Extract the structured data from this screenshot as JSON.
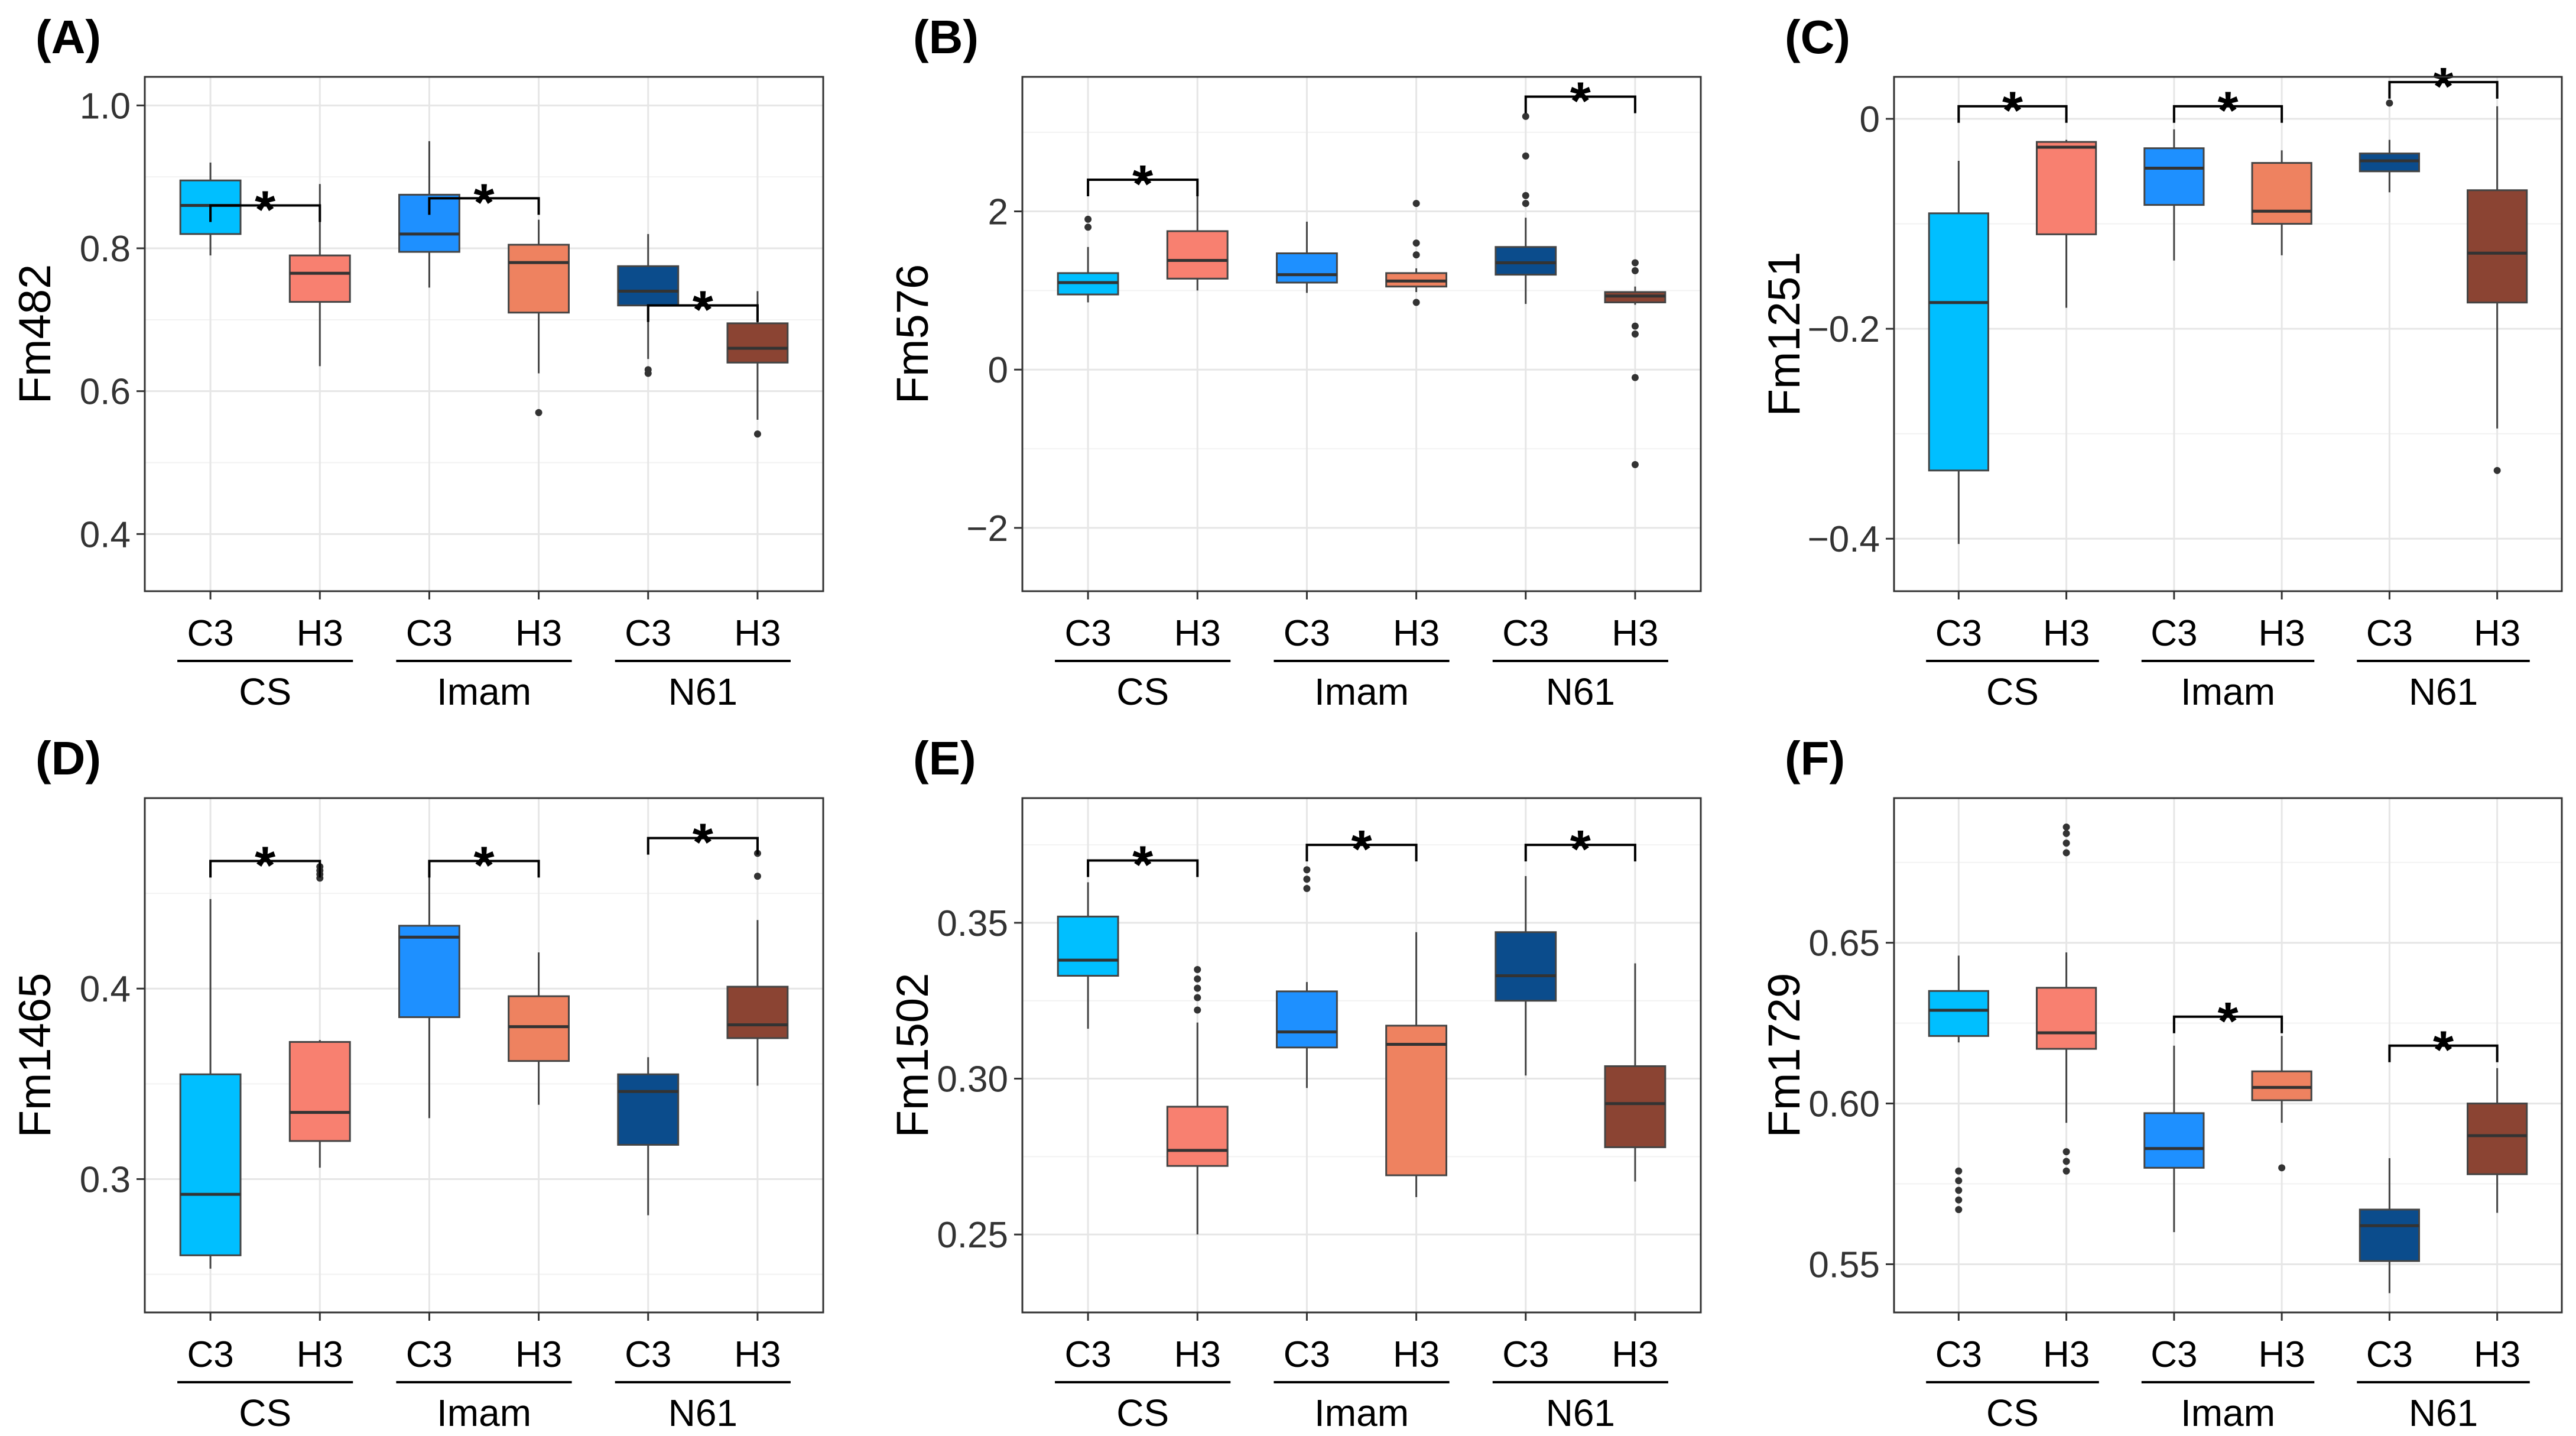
{
  "chart_data": [
    {
      "type": "box",
      "panel": "(A)",
      "ylabel": "Fm482",
      "ylim": [
        0.32,
        1.04
      ],
      "yticks": [
        0.4,
        0.6,
        0.8,
        1.0
      ],
      "ytick_labels": [
        "0.4",
        "0.6",
        "0.8",
        "1.0"
      ],
      "groups": [
        "CS",
        "Imam",
        "N61"
      ],
      "categories": [
        "C3",
        "H3"
      ],
      "boxes": [
        {
          "group": "CS",
          "cat": "C3",
          "color": "#00BFFF",
          "min": 0.79,
          "q1": 0.82,
          "median": 0.86,
          "q3": 0.895,
          "max": 0.92,
          "outliers": []
        },
        {
          "group": "CS",
          "cat": "H3",
          "color": "#F88070",
          "min": 0.635,
          "q1": 0.725,
          "median": 0.765,
          "q3": 0.79,
          "max": 0.89,
          "outliers": []
        },
        {
          "group": "Imam",
          "cat": "C3",
          "color": "#1E90FF",
          "min": 0.745,
          "q1": 0.795,
          "median": 0.82,
          "q3": 0.875,
          "max": 0.95,
          "outliers": []
        },
        {
          "group": "Imam",
          "cat": "H3",
          "color": "#EE8260",
          "min": 0.625,
          "q1": 0.71,
          "median": 0.78,
          "q3": 0.805,
          "max": 0.84,
          "outliers": [
            0.57
          ]
        },
        {
          "group": "N61",
          "cat": "C3",
          "color": "#0B4C8C",
          "min": 0.645,
          "q1": 0.72,
          "median": 0.74,
          "q3": 0.775,
          "max": 0.82,
          "outliers": [
            0.63,
            0.625
          ]
        },
        {
          "group": "N61",
          "cat": "H3",
          "color": "#8B4433",
          "min": 0.56,
          "q1": 0.64,
          "median": 0.66,
          "q3": 0.695,
          "max": 0.74,
          "outliers": [
            0.54
          ]
        }
      ],
      "significance": [
        {
          "group": "CS",
          "label": "*",
          "y": 0.86
        },
        {
          "group": "Imam",
          "label": "*",
          "y": 0.87
        },
        {
          "group": "N61",
          "label": "*",
          "y": 0.72
        }
      ]
    },
    {
      "type": "box",
      "panel": "(B)",
      "ylabel": "Fm576",
      "ylim": [
        -2.8,
        3.7
      ],
      "yticks": [
        -2,
        0,
        2
      ],
      "ytick_labels": [
        "−2",
        "0",
        "2"
      ],
      "groups": [
        "CS",
        "Imam",
        "N61"
      ],
      "categories": [
        "C3",
        "H3"
      ],
      "boxes": [
        {
          "group": "CS",
          "cat": "C3",
          "color": "#00BFFF",
          "min": 0.85,
          "q1": 0.95,
          "median": 1.1,
          "q3": 1.22,
          "max": 1.55,
          "outliers": [
            1.8,
            1.9
          ]
        },
        {
          "group": "CS",
          "cat": "H3",
          "color": "#F88070",
          "min": 1.0,
          "q1": 1.15,
          "median": 1.38,
          "q3": 1.75,
          "max": 2.2,
          "outliers": []
        },
        {
          "group": "Imam",
          "cat": "C3",
          "color": "#1E90FF",
          "min": 0.97,
          "q1": 1.1,
          "median": 1.2,
          "q3": 1.47,
          "max": 1.87,
          "outliers": []
        },
        {
          "group": "Imam",
          "cat": "H3",
          "color": "#EE8260",
          "min": 0.98,
          "q1": 1.05,
          "median": 1.12,
          "q3": 1.22,
          "max": 1.28,
          "outliers": [
            0.85,
            1.45,
            1.6,
            2.1
          ]
        },
        {
          "group": "N61",
          "cat": "C3",
          "color": "#0B4C8C",
          "min": 0.83,
          "q1": 1.2,
          "median": 1.35,
          "q3": 1.55,
          "max": 1.92,
          "outliers": [
            2.1,
            2.2,
            2.7,
            3.2
          ]
        },
        {
          "group": "N61",
          "cat": "H3",
          "color": "#8B4433",
          "min": 0.82,
          "q1": 0.85,
          "median": 0.93,
          "q3": 0.98,
          "max": 1.05,
          "outliers": [
            0.55,
            0.45,
            -0.1,
            -1.2,
            1.25,
            1.35
          ]
        }
      ],
      "significance": [
        {
          "group": "CS",
          "label": "*",
          "y": 2.4
        },
        {
          "group": "N61",
          "label": "*",
          "y": 3.45
        }
      ]
    },
    {
      "type": "box",
      "panel": "(C)",
      "ylabel": "Fm1251",
      "ylim": [
        -0.45,
        0.04
      ],
      "yticks": [
        -0.4,
        -0.2,
        0
      ],
      "ytick_labels": [
        "−0.4",
        "−0.2",
        "0"
      ],
      "groups": [
        "CS",
        "Imam",
        "N61"
      ],
      "categories": [
        "C3",
        "H3"
      ],
      "boxes": [
        {
          "group": "CS",
          "cat": "C3",
          "color": "#00BFFF",
          "min": -0.405,
          "q1": -0.335,
          "median": -0.175,
          "q3": -0.09,
          "max": -0.04,
          "outliers": []
        },
        {
          "group": "CS",
          "cat": "H3",
          "color": "#F88070",
          "min": -0.18,
          "q1": -0.11,
          "median": -0.027,
          "q3": -0.022,
          "max": -0.02,
          "outliers": []
        },
        {
          "group": "Imam",
          "cat": "C3",
          "color": "#1E90FF",
          "min": -0.135,
          "q1": -0.082,
          "median": -0.047,
          "q3": -0.028,
          "max": -0.01,
          "outliers": []
        },
        {
          "group": "Imam",
          "cat": "H3",
          "color": "#EE8260",
          "min": -0.13,
          "q1": -0.1,
          "median": -0.088,
          "q3": -0.042,
          "max": -0.03,
          "outliers": []
        },
        {
          "group": "N61",
          "cat": "C3",
          "color": "#0B4C8C",
          "min": -0.07,
          "q1": -0.05,
          "median": -0.04,
          "q3": -0.033,
          "max": -0.02,
          "outliers": [
            0.015
          ]
        },
        {
          "group": "N61",
          "cat": "H3",
          "color": "#8B4433",
          "min": -0.295,
          "q1": -0.175,
          "median": -0.128,
          "q3": -0.068,
          "max": 0.012,
          "outliers": [
            -0.335
          ]
        }
      ],
      "significance": [
        {
          "group": "CS",
          "label": "*",
          "y": 0.012
        },
        {
          "group": "Imam",
          "label": "*",
          "y": 0.012
        },
        {
          "group": "N61",
          "label": "*",
          "y": 0.035
        }
      ]
    },
    {
      "type": "box",
      "panel": "(D)",
      "ylabel": "Fm1465",
      "ylim": [
        0.23,
        0.5
      ],
      "yticks": [
        0.3,
        0.4
      ],
      "ytick_labels": [
        "0.3",
        "0.4"
      ],
      "groups": [
        "CS",
        "Imam",
        "N61"
      ],
      "categories": [
        "C3",
        "H3"
      ],
      "boxes": [
        {
          "group": "CS",
          "cat": "C3",
          "color": "#00BFFF",
          "min": 0.253,
          "q1": 0.26,
          "median": 0.292,
          "q3": 0.355,
          "max": 0.447,
          "outliers": []
        },
        {
          "group": "CS",
          "cat": "H3",
          "color": "#F88070",
          "min": 0.306,
          "q1": 0.32,
          "median": 0.335,
          "q3": 0.372,
          "max": 0.373,
          "outliers": [
            0.458,
            0.46,
            0.462,
            0.464
          ]
        },
        {
          "group": "Imam",
          "cat": "C3",
          "color": "#1E90FF",
          "min": 0.332,
          "q1": 0.385,
          "median": 0.427,
          "q3": 0.433,
          "max": 0.46,
          "outliers": []
        },
        {
          "group": "Imam",
          "cat": "H3",
          "color": "#EE8260",
          "min": 0.339,
          "q1": 0.362,
          "median": 0.38,
          "q3": 0.396,
          "max": 0.419,
          "outliers": []
        },
        {
          "group": "N61",
          "cat": "C3",
          "color": "#0B4C8C",
          "min": 0.281,
          "q1": 0.318,
          "median": 0.346,
          "q3": 0.355,
          "max": 0.364,
          "outliers": []
        },
        {
          "group": "N61",
          "cat": "H3",
          "color": "#8B4433",
          "min": 0.349,
          "q1": 0.374,
          "median": 0.381,
          "q3": 0.401,
          "max": 0.436,
          "outliers": [
            0.459,
            0.471
          ]
        }
      ],
      "significance": [
        {
          "group": "CS",
          "label": "*",
          "y": 0.467
        },
        {
          "group": "Imam",
          "label": "*",
          "y": 0.467
        },
        {
          "group": "N61",
          "label": "*",
          "y": 0.479
        }
      ]
    },
    {
      "type": "box",
      "panel": "(E)",
      "ylabel": "Fm1502",
      "ylim": [
        0.225,
        0.39
      ],
      "yticks": [
        0.25,
        0.3,
        0.35
      ],
      "ytick_labels": [
        "0.25",
        "0.30",
        "0.35"
      ],
      "groups": [
        "CS",
        "Imam",
        "N61"
      ],
      "categories": [
        "C3",
        "H3"
      ],
      "boxes": [
        {
          "group": "CS",
          "cat": "C3",
          "color": "#00BFFF",
          "min": 0.316,
          "q1": 0.333,
          "median": 0.338,
          "q3": 0.352,
          "max": 0.363,
          "outliers": []
        },
        {
          "group": "CS",
          "cat": "H3",
          "color": "#F88070",
          "min": 0.25,
          "q1": 0.272,
          "median": 0.277,
          "q3": 0.291,
          "max": 0.318,
          "outliers": [
            0.322,
            0.326,
            0.329,
            0.332,
            0.335
          ]
        },
        {
          "group": "Imam",
          "cat": "C3",
          "color": "#1E90FF",
          "min": 0.297,
          "q1": 0.31,
          "median": 0.315,
          "q3": 0.328,
          "max": 0.331,
          "outliers": [
            0.361,
            0.364,
            0.367
          ]
        },
        {
          "group": "Imam",
          "cat": "H3",
          "color": "#EE8260",
          "min": 0.262,
          "q1": 0.269,
          "median": 0.311,
          "q3": 0.317,
          "max": 0.347,
          "outliers": []
        },
        {
          "group": "N61",
          "cat": "C3",
          "color": "#0B4C8C",
          "min": 0.301,
          "q1": 0.325,
          "median": 0.333,
          "q3": 0.347,
          "max": 0.365,
          "outliers": []
        },
        {
          "group": "N61",
          "cat": "H3",
          "color": "#8B4433",
          "min": 0.267,
          "q1": 0.278,
          "median": 0.292,
          "q3": 0.304,
          "max": 0.337,
          "outliers": []
        }
      ],
      "significance": [
        {
          "group": "CS",
          "label": "*",
          "y": 0.37
        },
        {
          "group": "Imam",
          "label": "*",
          "y": 0.375
        },
        {
          "group": "N61",
          "label": "*",
          "y": 0.375
        }
      ]
    },
    {
      "type": "box",
      "panel": "(F)",
      "ylabel": "Fm1729",
      "ylim": [
        0.535,
        0.695
      ],
      "yticks": [
        0.55,
        0.6,
        0.65
      ],
      "ytick_labels": [
        "0.55",
        "0.60",
        "0.65"
      ],
      "groups": [
        "CS",
        "Imam",
        "N61"
      ],
      "categories": [
        "C3",
        "H3"
      ],
      "boxes": [
        {
          "group": "CS",
          "cat": "C3",
          "color": "#00BFFF",
          "min": 0.619,
          "q1": 0.621,
          "median": 0.629,
          "q3": 0.635,
          "max": 0.646,
          "outliers": [
            0.567,
            0.57,
            0.573,
            0.576,
            0.579
          ]
        },
        {
          "group": "CS",
          "cat": "H3",
          "color": "#F88070",
          "min": 0.594,
          "q1": 0.617,
          "median": 0.622,
          "q3": 0.636,
          "max": 0.647,
          "outliers": [
            0.579,
            0.582,
            0.585,
            0.678,
            0.681,
            0.684,
            0.686
          ]
        },
        {
          "group": "Imam",
          "cat": "C3",
          "color": "#1E90FF",
          "min": 0.56,
          "q1": 0.58,
          "median": 0.586,
          "q3": 0.597,
          "max": 0.618,
          "outliers": []
        },
        {
          "group": "Imam",
          "cat": "H3",
          "color": "#EE8260",
          "min": 0.594,
          "q1": 0.601,
          "median": 0.605,
          "q3": 0.61,
          "max": 0.621,
          "outliers": [
            0.58
          ]
        },
        {
          "group": "N61",
          "cat": "C3",
          "color": "#0B4C8C",
          "min": 0.541,
          "q1": 0.551,
          "median": 0.562,
          "q3": 0.567,
          "max": 0.583,
          "outliers": []
        },
        {
          "group": "N61",
          "cat": "H3",
          "color": "#8B4433",
          "min": 0.566,
          "q1": 0.578,
          "median": 0.59,
          "q3": 0.6,
          "max": 0.611,
          "outliers": []
        }
      ],
      "significance": [
        {
          "group": "Imam",
          "label": "*",
          "y": 0.627
        },
        {
          "group": "N61",
          "label": "*",
          "y": 0.618
        }
      ]
    }
  ]
}
